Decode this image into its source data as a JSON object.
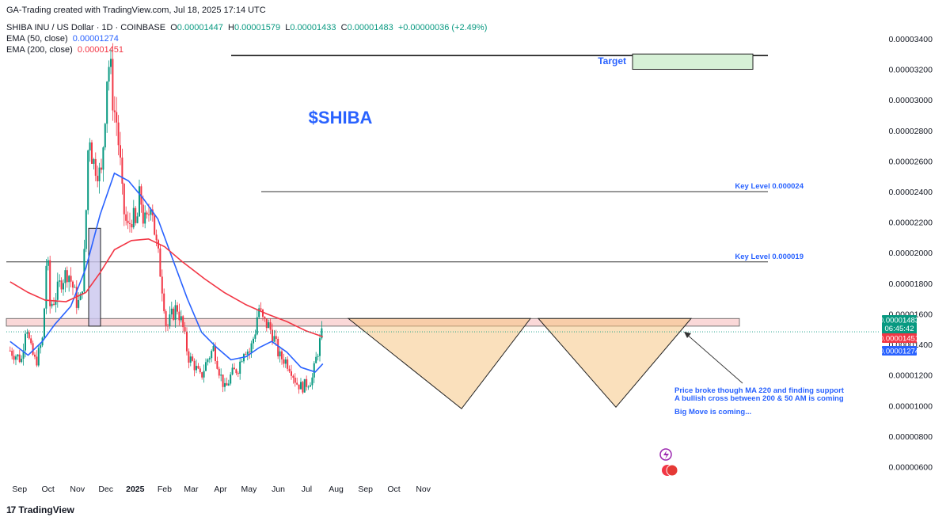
{
  "header": {
    "created": "GA-Trading created with TradingView.com, Jul 18, 2025 17:14 UTC",
    "symbol": "SHIBA INU / US Dollar · 1D · COINBASE",
    "o_label": "O",
    "o_value": "0.00001447",
    "h_label": "H",
    "h_value": "0.00001579",
    "l_label": "L",
    "l_value": "0.00001433",
    "c_label": "C",
    "c_value": "0.00001483",
    "change": "+0.00000036 (+2.49%)",
    "ema50_label": "EMA (50, close)",
    "ema50_value": "0.00001274",
    "ema200_label": "EMA (200, close)",
    "ema200_value": "0.00001451"
  },
  "chart_data": {
    "type": "candlestick",
    "y_ticks": [
      "0.00003400",
      "0.00003200",
      "0.00003000",
      "0.00002800",
      "0.00002600",
      "0.00002400",
      "0.00002200",
      "0.00002000",
      "0.00001800",
      "0.00001600",
      "0.00001400",
      "0.00001200",
      "0.00001000",
      "0.00000800",
      "0.00000600"
    ],
    "ylim": [
      5.2e-06,
      3.56e-05
    ],
    "x_labels": [
      "Sep",
      "Oct",
      "Nov",
      "Dec",
      "2025",
      "Feb",
      "Mar",
      "Apr",
      "May",
      "Jun",
      "Jul",
      "Aug",
      "Sep",
      "Oct",
      "Nov"
    ],
    "price_path": [
      [
        "2024-08-22",
        1.36e-05
      ],
      [
        "2024-08-28",
        1.33e-05
      ],
      [
        "2024-09-03",
        1.3e-05
      ],
      [
        "2024-09-08",
        1.56e-05
      ],
      [
        "2024-09-12",
        1.38e-05
      ],
      [
        "2024-09-18",
        1.28e-05
      ],
      [
        "2024-09-22",
        1.36e-05
      ],
      [
        "2024-09-26",
        1.45e-05
      ],
      [
        "2024-09-28",
        1.8e-05
      ],
      [
        "2024-09-30",
        2.03e-05
      ],
      [
        "2024-10-03",
        1.65e-05
      ],
      [
        "2024-10-08",
        1.7e-05
      ],
      [
        "2024-10-15",
        1.82e-05
      ],
      [
        "2024-10-22",
        1.88e-05
      ],
      [
        "2024-10-27",
        1.78e-05
      ],
      [
        "2024-11-01",
        1.66e-05
      ],
      [
        "2024-11-05",
        1.7e-05
      ],
      [
        "2024-11-08",
        1.95e-05
      ],
      [
        "2024-11-11",
        2.4e-05
      ],
      [
        "2024-11-13",
        2.85e-05
      ],
      [
        "2024-11-17",
        2.6e-05
      ],
      [
        "2024-11-22",
        2.56e-05
      ],
      [
        "2024-11-26",
        2.48e-05
      ],
      [
        "2024-11-30",
        2.9e-05
      ],
      [
        "2024-12-03",
        3.25e-05
      ],
      [
        "2024-12-06",
        3.2e-05
      ],
      [
        "2024-12-09",
        2.95e-05
      ],
      [
        "2024-12-12",
        2.88e-05
      ],
      [
        "2024-12-16",
        2.6e-05
      ],
      [
        "2024-12-19",
        2.3e-05
      ],
      [
        "2024-12-24",
        2.15e-05
      ],
      [
        "2024-12-29",
        2.25e-05
      ],
      [
        "2025-01-02",
        2.15e-05
      ],
      [
        "2025-01-06",
        2.4e-05
      ],
      [
        "2025-01-10",
        2.2e-05
      ],
      [
        "2025-01-14",
        2.2e-05
      ],
      [
        "2025-01-18",
        2.38e-05
      ],
      [
        "2025-01-22",
        2.1e-05
      ],
      [
        "2025-01-26",
        1.95e-05
      ],
      [
        "2025-01-31",
        1.7e-05
      ],
      [
        "2025-02-03",
        1.5e-05
      ],
      [
        "2025-02-08",
        1.58e-05
      ],
      [
        "2025-02-14",
        1.65e-05
      ],
      [
        "2025-02-20",
        1.52e-05
      ],
      [
        "2025-02-26",
        1.32e-05
      ],
      [
        "2025-03-04",
        1.27e-05
      ],
      [
        "2025-03-11",
        1.18e-05
      ],
      [
        "2025-03-18",
        1.3e-05
      ],
      [
        "2025-03-25",
        1.38e-05
      ],
      [
        "2025-03-31",
        1.22e-05
      ],
      [
        "2025-04-06",
        1.1e-05
      ],
      [
        "2025-04-12",
        1.2e-05
      ],
      [
        "2025-04-20",
        1.25e-05
      ],
      [
        "2025-04-26",
        1.38e-05
      ],
      [
        "2025-05-02",
        1.35e-05
      ],
      [
        "2025-05-08",
        1.5e-05
      ],
      [
        "2025-05-11",
        1.65e-05
      ],
      [
        "2025-05-16",
        1.55e-05
      ],
      [
        "2025-05-22",
        1.52e-05
      ],
      [
        "2025-05-27",
        1.45e-05
      ],
      [
        "2025-06-02",
        1.32e-05
      ],
      [
        "2025-06-08",
        1.3e-05
      ],
      [
        "2025-06-14",
        1.25e-05
      ],
      [
        "2025-06-20",
        1.15e-05
      ],
      [
        "2025-06-26",
        1.12e-05
      ],
      [
        "2025-07-02",
        1.15e-05
      ],
      [
        "2025-07-07",
        1.18e-05
      ],
      [
        "2025-07-11",
        1.31e-05
      ],
      [
        "2025-07-15",
        1.42e-05
      ],
      [
        "2025-07-18",
        1.483e-05
      ]
    ],
    "series": [
      {
        "name": "EMA (50, close)",
        "color": "#2962ff",
        "points": [
          [
            "2024-08-22",
            1.42e-05
          ],
          [
            "2024-09-10",
            1.33e-05
          ],
          [
            "2024-09-25",
            1.42e-05
          ],
          [
            "2024-10-08",
            1.53e-05
          ],
          [
            "2024-10-25",
            1.65e-05
          ],
          [
            "2024-11-10",
            1.9e-05
          ],
          [
            "2024-11-25",
            2.25e-05
          ],
          [
            "2024-12-10",
            2.52e-05
          ],
          [
            "2024-12-25",
            2.47e-05
          ],
          [
            "2025-01-10",
            2.35e-05
          ],
          [
            "2025-01-25",
            2.22e-05
          ],
          [
            "2025-02-10",
            1.95e-05
          ],
          [
            "2025-02-25",
            1.7e-05
          ],
          [
            "2025-03-12",
            1.48e-05
          ],
          [
            "2025-03-28",
            1.38e-05
          ],
          [
            "2025-04-12",
            1.3e-05
          ],
          [
            "2025-04-28",
            1.32e-05
          ],
          [
            "2025-05-12",
            1.38e-05
          ],
          [
            "2025-05-25",
            1.42e-05
          ],
          [
            "2025-06-10",
            1.35e-05
          ],
          [
            "2025-06-25",
            1.25e-05
          ],
          [
            "2025-07-10",
            1.22e-05
          ],
          [
            "2025-07-18",
            1.274e-05
          ]
        ]
      },
      {
        "name": "EMA (200, close)",
        "color": "#f23645",
        "points": [
          [
            "2024-08-22",
            1.81e-05
          ],
          [
            "2024-09-10",
            1.74e-05
          ],
          [
            "2024-09-28",
            1.69e-05
          ],
          [
            "2024-10-20",
            1.68e-05
          ],
          [
            "2024-11-10",
            1.74e-05
          ],
          [
            "2024-11-25",
            1.87e-05
          ],
          [
            "2024-12-10",
            2.02e-05
          ],
          [
            "2024-12-28",
            2.08e-05
          ],
          [
            "2025-01-15",
            2.09e-05
          ],
          [
            "2025-02-01",
            2.04e-05
          ],
          [
            "2025-02-20",
            1.94e-05
          ],
          [
            "2025-03-15",
            1.83e-05
          ],
          [
            "2025-04-05",
            1.74e-05
          ],
          [
            "2025-04-28",
            1.66e-05
          ],
          [
            "2025-05-20",
            1.6e-05
          ],
          [
            "2025-06-10",
            1.55e-05
          ],
          [
            "2025-06-30",
            1.49e-05
          ],
          [
            "2025-07-18",
            1.451e-05
          ]
        ]
      }
    ],
    "levels": [
      {
        "label": "Key Level 0.000024",
        "value": 2.4e-05
      },
      {
        "label": "Key Level 0.000019",
        "value": 1.94e-05
      }
    ],
    "top_level": 3.29e-05,
    "support_zone": [
      1.52e-05,
      1.57e-05
    ],
    "target": {
      "label": "Target",
      "range": [
        3.2e-05,
        3.3e-05
      ]
    },
    "chart_title": "$SHIBA",
    "annotations": [
      "Price broke though MA 220 and finding support",
      "A bullish cross between 200 & 50 AM is coming",
      "Big Move is coming..."
    ],
    "price_tags": [
      {
        "value": "0.00001483",
        "sub": "06:45:42",
        "color": "#089981"
      },
      {
        "value": "0.00001451",
        "color": "#f23645"
      },
      {
        "value": "0.00001274",
        "color": "#2962ff"
      }
    ]
  },
  "footer": {
    "logo_mark": "17",
    "brand": "TradingView"
  }
}
